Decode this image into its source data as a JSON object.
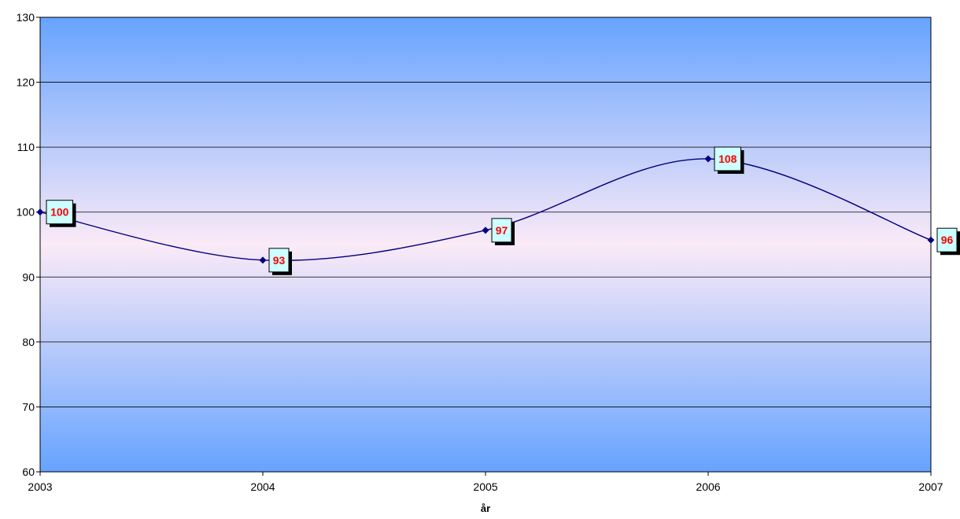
{
  "chart_data": {
    "type": "line",
    "title": "",
    "xlabel": "år",
    "ylabel": "",
    "categories": [
      "2003",
      "2004",
      "2005",
      "2006",
      "2007"
    ],
    "series": [
      {
        "values": [
          100,
          92.6,
          97.2,
          108.2,
          95.7
        ],
        "labels": [
          "100",
          "93",
          "97",
          "108",
          "96"
        ]
      }
    ],
    "ylim": [
      60,
      130
    ],
    "yticks": [
      "60",
      "70",
      "80",
      "90",
      "100",
      "110",
      "120",
      "130"
    ],
    "grid": true,
    "legend": "none",
    "colors": {
      "line": "#000080",
      "marker": "#000080",
      "label_text": "#ff0000",
      "label_box": "#ccffff",
      "plot_edge": "#66a3ff",
      "plot_center": "#fbeaf7"
    }
  }
}
